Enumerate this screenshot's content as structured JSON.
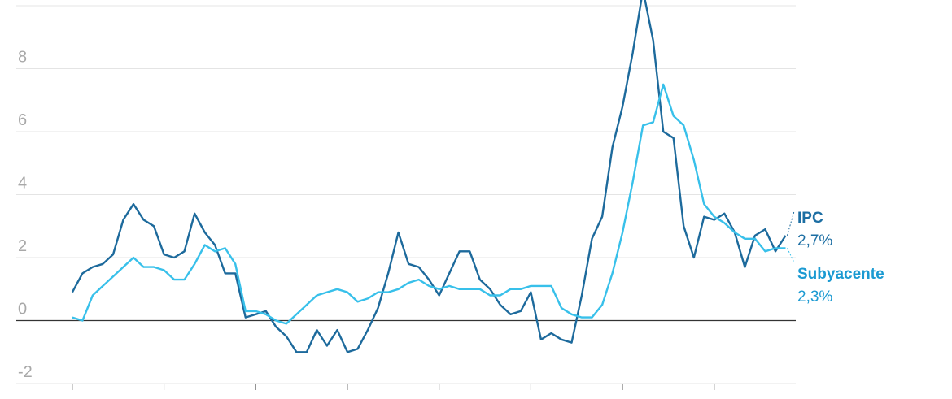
{
  "chart_data": {
    "type": "line",
    "x": [
      0,
      4,
      8,
      12,
      16,
      20,
      24,
      28,
      32,
      36,
      40,
      44,
      48,
      52,
      56,
      60,
      64,
      68,
      72,
      76,
      80,
      84,
      88,
      92,
      96,
      100,
      104,
      108,
      112,
      116,
      120,
      124,
      128,
      132,
      136,
      140,
      144,
      148,
      152,
      156,
      160,
      164,
      168,
      172,
      176,
      180,
      184,
      188,
      192,
      196,
      200,
      204,
      208,
      212,
      216,
      220,
      224,
      228,
      232,
      236,
      240,
      244,
      248,
      252,
      256,
      260,
      264,
      268,
      272,
      276,
      280
    ],
    "series": [
      {
        "name": "IPC",
        "end_label": "2,7%",
        "color": "#1d6a9c",
        "values": [
          0.9,
          1.5,
          1.7,
          1.8,
          2.1,
          3.2,
          3.7,
          3.2,
          3.0,
          2.1,
          2.0,
          2.2,
          3.4,
          2.8,
          2.4,
          1.5,
          1.5,
          0.1,
          0.2,
          0.3,
          -0.2,
          -0.5,
          -1.0,
          -1.0,
          -0.3,
          -0.8,
          -0.3,
          -1.0,
          -0.9,
          -0.3,
          0.4,
          1.5,
          2.8,
          1.8,
          1.7,
          1.3,
          0.8,
          1.5,
          2.2,
          2.2,
          1.3,
          1.0,
          0.5,
          0.2,
          0.3,
          0.9,
          -0.6,
          -0.4,
          -0.6,
          -0.7,
          0.8,
          2.6,
          3.3,
          5.5,
          6.8,
          8.5,
          10.5,
          8.9,
          6.0,
          5.8,
          3.0,
          2.0,
          3.3,
          3.2,
          3.4,
          2.8,
          1.7,
          2.7,
          2.9,
          2.2,
          2.7
        ]
      },
      {
        "name": "Subyacente",
        "end_label": "2,3%",
        "color": "#38c0ea",
        "values": [
          0.1,
          0.0,
          0.8,
          1.1,
          1.4,
          1.7,
          2.0,
          1.7,
          1.7,
          1.6,
          1.3,
          1.3,
          1.8,
          2.4,
          2.2,
          2.3,
          1.8,
          0.3,
          0.3,
          0.2,
          0.0,
          -0.1,
          0.2,
          0.5,
          0.8,
          0.9,
          1.0,
          0.9,
          0.6,
          0.7,
          0.9,
          0.9,
          1.0,
          1.2,
          1.3,
          1.1,
          1.0,
          1.1,
          1.0,
          1.0,
          1.0,
          0.8,
          0.8,
          1.0,
          1.0,
          1.1,
          1.1,
          1.1,
          0.4,
          0.2,
          0.1,
          0.1,
          0.5,
          1.5,
          2.8,
          4.4,
          6.2,
          6.3,
          7.5,
          6.5,
          6.2,
          5.1,
          3.7,
          3.3,
          3.1,
          2.8,
          2.6,
          2.6,
          2.2,
          2.3,
          2.3
        ]
      }
    ],
    "xlim": [
      -22,
      284
    ],
    "xticks": [
      0,
      36,
      72,
      108,
      144,
      180,
      216,
      252
    ],
    "ylim": [
      -2,
      10
    ],
    "yticks": [
      -2,
      0,
      2,
      4,
      6,
      8,
      10
    ],
    "grid": true
  }
}
